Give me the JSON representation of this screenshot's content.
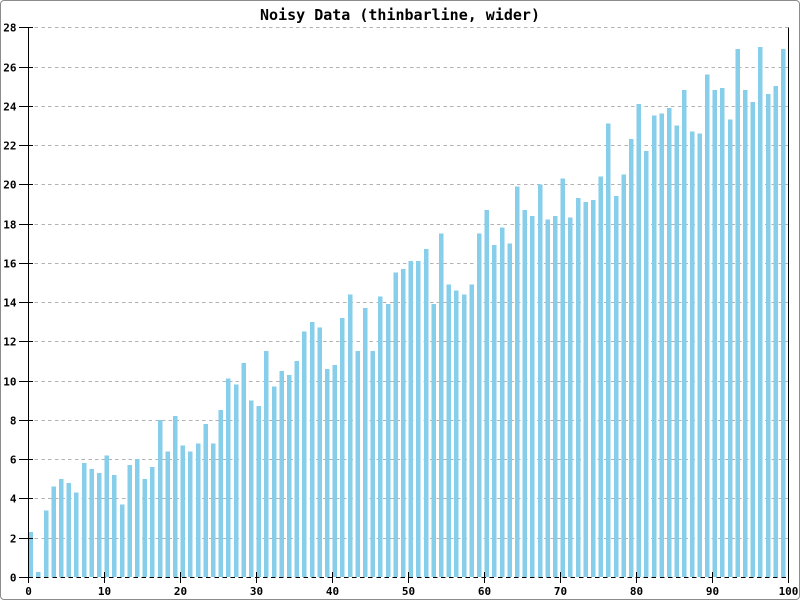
{
  "chart_data": {
    "type": "bar",
    "title": "Noisy Data (thinbarline, wider)",
    "xlabel": "",
    "ylabel": "",
    "xlim": [
      0,
      100
    ],
    "ylim": [
      0,
      28
    ],
    "x_ticks": [
      0,
      10,
      20,
      30,
      40,
      50,
      60,
      70,
      80,
      90,
      100
    ],
    "y_ticks": [
      0,
      2,
      4,
      6,
      8,
      10,
      12,
      14,
      16,
      18,
      20,
      22,
      24,
      26,
      28
    ],
    "grid": true,
    "legend": false,
    "bar_color": "#87CEEB",
    "grid_color": "#b3b3b3",
    "axis_color": "#000000",
    "background": "#ffffff",
    "border_color": "#8c8c8c",
    "x": [
      0,
      1,
      2,
      3,
      4,
      5,
      6,
      7,
      8,
      9,
      10,
      11,
      12,
      13,
      14,
      15,
      16,
      17,
      18,
      19,
      20,
      21,
      22,
      23,
      24,
      25,
      26,
      27,
      28,
      29,
      30,
      31,
      32,
      33,
      34,
      35,
      36,
      37,
      38,
      39,
      40,
      41,
      42,
      43,
      44,
      45,
      46,
      47,
      48,
      49,
      50,
      51,
      52,
      53,
      54,
      55,
      56,
      57,
      58,
      59,
      60,
      61,
      62,
      63,
      64,
      65,
      66,
      67,
      68,
      69,
      70,
      71,
      72,
      73,
      74,
      75,
      76,
      77,
      78,
      79,
      80,
      81,
      82,
      83,
      84,
      85,
      86,
      87,
      88,
      89,
      90,
      91,
      92,
      93,
      94,
      95,
      96,
      97,
      98,
      99
    ],
    "values": [
      2.3,
      0.25,
      3.4,
      4.6,
      5.0,
      4.8,
      4.3,
      5.8,
      5.5,
      5.3,
      6.2,
      5.2,
      3.7,
      5.7,
      6.0,
      5.0,
      5.6,
      8.0,
      6.4,
      8.2,
      6.7,
      6.4,
      6.8,
      7.8,
      6.8,
      8.5,
      10.1,
      9.8,
      10.9,
      9.0,
      8.7,
      11.5,
      9.7,
      10.5,
      10.3,
      11.0,
      12.5,
      13.0,
      12.7,
      10.6,
      10.8,
      13.2,
      14.4,
      11.5,
      13.7,
      11.5,
      14.3,
      13.9,
      15.5,
      15.7,
      16.1,
      16.1,
      16.7,
      13.9,
      17.5,
      14.9,
      14.6,
      14.4,
      14.9,
      17.5,
      18.7,
      16.9,
      17.8,
      17.0,
      19.9,
      18.7,
      18.4,
      20.0,
      18.2,
      18.4,
      20.3,
      18.3,
      19.3,
      19.1,
      19.2,
      20.4,
      23.1,
      19.4,
      20.5,
      22.3,
      24.1,
      21.7,
      23.5,
      23.6,
      23.9,
      23.0,
      24.8,
      22.7,
      22.6,
      25.6,
      24.8,
      24.9,
      23.3,
      26.9,
      24.8,
      24.2,
      27.0,
      24.6,
      25.0,
      26.9
    ]
  }
}
